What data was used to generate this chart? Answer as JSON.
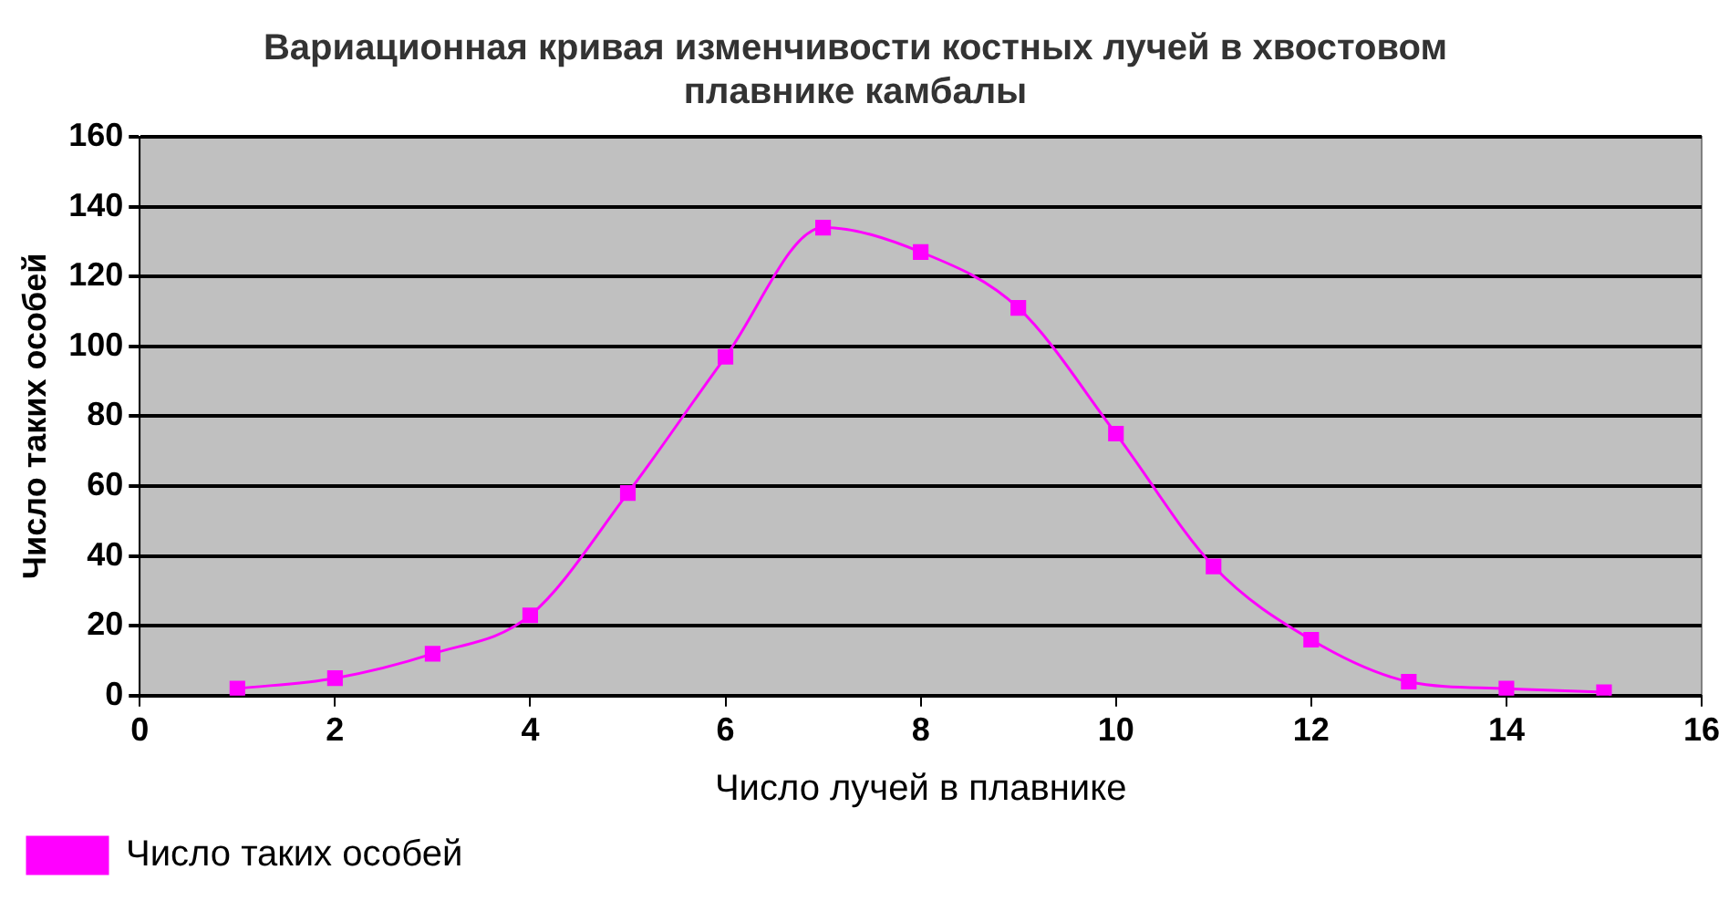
{
  "chart_data": {
    "type": "line",
    "title": "Вариационная кривая изменчивости костных лучей в хвостовом плавнике камбалы",
    "xlabel": "Число лучей в плавнике",
    "ylabel": "Число таких особей",
    "x": [
      1,
      2,
      3,
      4,
      5,
      6,
      7,
      8,
      9,
      10,
      11,
      12,
      13,
      14,
      15
    ],
    "series": [
      {
        "name": "Число таких особей",
        "color": "#ff00ff",
        "values": [
          2,
          5,
          12,
          23,
          58,
          97,
          134,
          127,
          111,
          75,
          37,
          16,
          4,
          2,
          1
        ]
      }
    ],
    "xlim": [
      0,
      16
    ],
    "xticks": [
      0,
      2,
      4,
      6,
      8,
      10,
      12,
      14,
      16
    ],
    "ylim": [
      0,
      160
    ],
    "yticks": [
      0,
      20,
      40,
      60,
      80,
      100,
      120,
      140,
      160
    ],
    "grid": "y",
    "legend": "bottom left",
    "marker": "square",
    "line_style": "solid"
  }
}
